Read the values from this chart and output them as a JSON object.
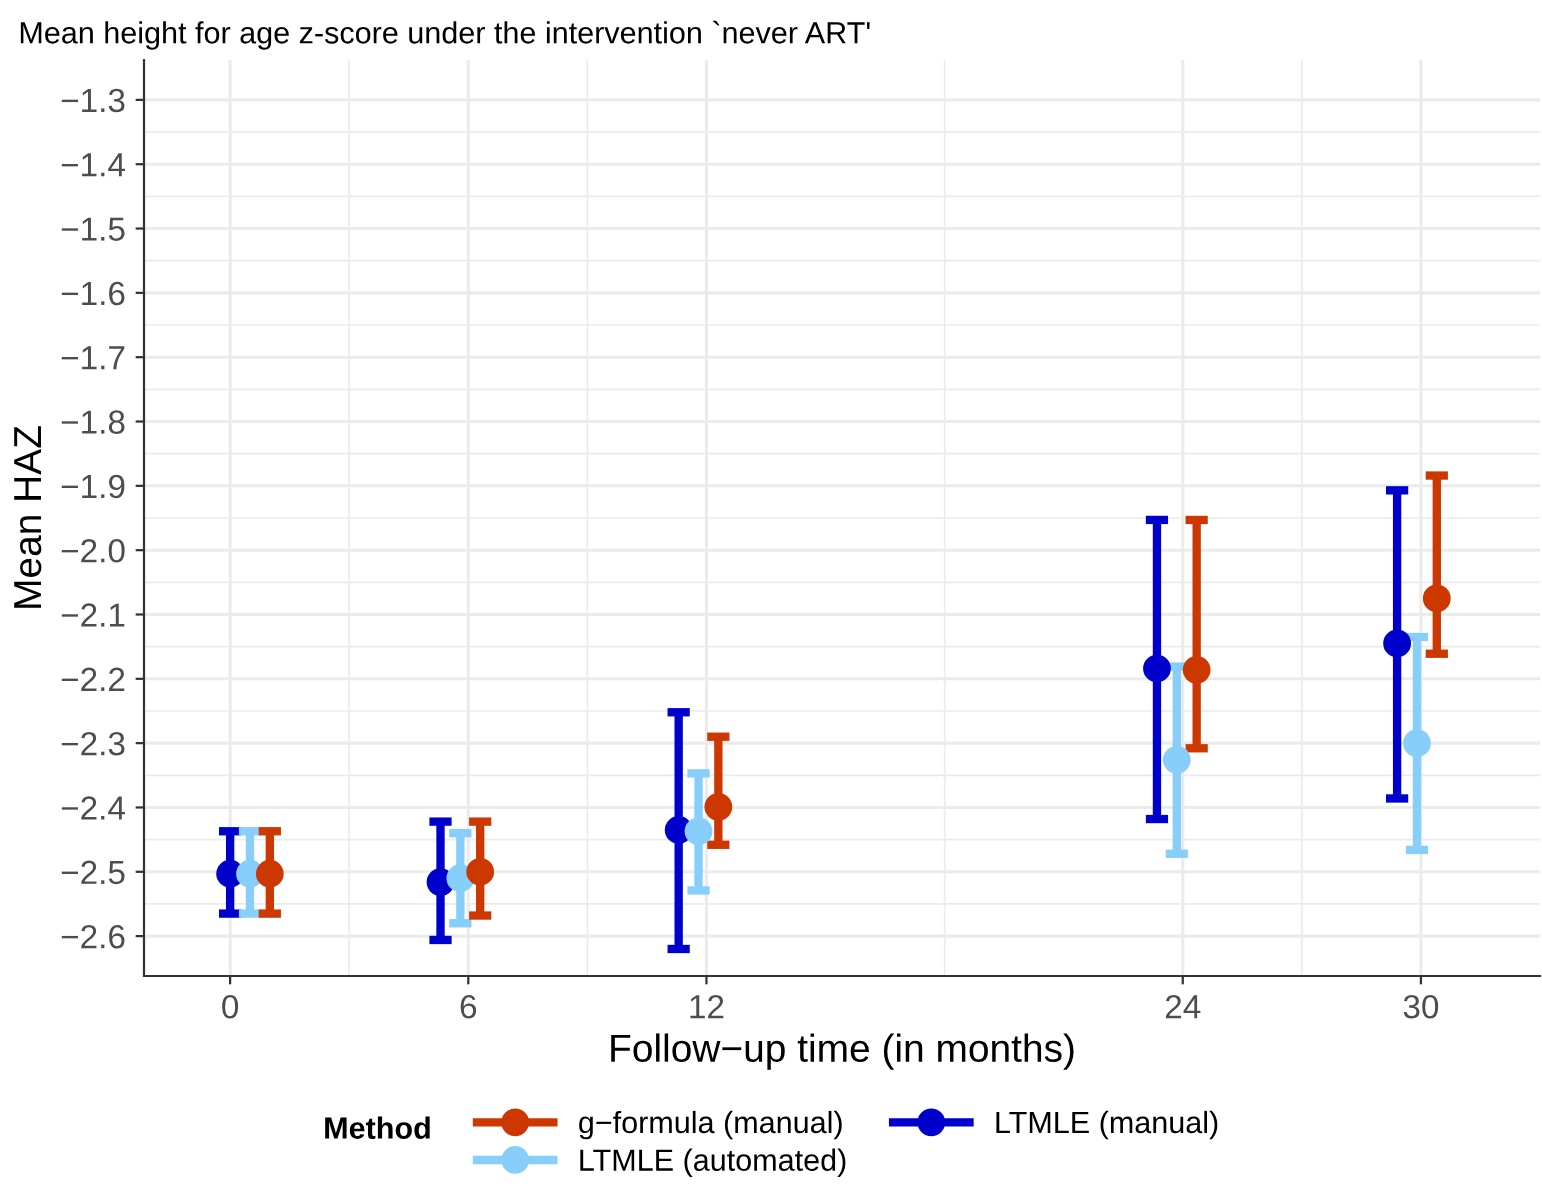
{
  "chart_data": {
    "type": "scatter",
    "title": "Mean height for age z-score under the intervention `never ART'",
    "xlabel": "Follow−up time (in months)",
    "ylabel": "Mean HAZ",
    "legend_title": "Method",
    "series": [
      {
        "name": "g−formula (manual)",
        "color": "#cd3700",
        "x": [
          1,
          6.3,
          12.3,
          24.35,
          30.4
        ],
        "values": [
          -2.503,
          -2.5,
          -2.399,
          -2.186,
          -2.075
        ],
        "errors": [
          [
            -2.565,
            -2.437
          ],
          [
            -2.568,
            -2.422
          ],
          [
            -2.458,
            -2.29
          ],
          [
            -2.308,
            -1.953
          ],
          [
            -2.161,
            -1.884
          ]
        ]
      },
      {
        "name": "LTMLE (automated)",
        "color": "#87cefa",
        "x": [
          0.5,
          5.8,
          11.8,
          23.85,
          29.9
        ],
        "values": [
          -2.503,
          -2.51,
          -2.437,
          -2.326,
          -2.3
        ],
        "errors": [
          [
            -2.565,
            -2.437
          ],
          [
            -2.58,
            -2.44
          ],
          [
            -2.529,
            -2.347
          ],
          [
            -2.472,
            -2.181
          ],
          [
            -2.466,
            -2.135
          ]
        ]
      },
      {
        "name": "LTMLE (manual)",
        "color": "#0000cd",
        "x": [
          0,
          5.3,
          11.3,
          23.35,
          29.4
        ],
        "values": [
          -2.503,
          -2.516,
          -2.435,
          -2.184,
          -2.145
        ],
        "errors": [
          [
            -2.565,
            -2.437
          ],
          [
            -2.606,
            -2.422
          ],
          [
            -2.62,
            -2.252
          ],
          [
            -2.418,
            -1.953
          ],
          [
            -2.386,
            -1.907
          ]
        ]
      }
    ],
    "xlim": [
      -2.17,
      33.0
    ],
    "xticks": [
      0,
      6,
      12,
      24,
      30
    ],
    "ylim": [
      -2.662,
      -1.238
    ],
    "yticks": [
      {
        "value": -2.6,
        "label": "−2.6"
      },
      {
        "value": -2.5,
        "label": "−2.5"
      },
      {
        "value": -2.4,
        "label": "−2.4"
      },
      {
        "value": -2.3,
        "label": "−2.3"
      },
      {
        "value": -2.2,
        "label": "−2.2"
      },
      {
        "value": -2.1,
        "label": "−2.1"
      },
      {
        "value": -2.0,
        "label": "−2.0"
      },
      {
        "value": -1.9,
        "label": "−1.9"
      },
      {
        "value": -1.8,
        "label": "−1.8"
      },
      {
        "value": -1.7,
        "label": "−1.7"
      },
      {
        "value": -1.6,
        "label": "−1.6"
      },
      {
        "value": -1.5,
        "label": "−1.5"
      },
      {
        "value": -1.4,
        "label": "−1.4"
      },
      {
        "value": -1.3,
        "label": "−1.3"
      }
    ],
    "grid": true,
    "legend": "bottom",
    "marker": "circle",
    "line_style": "solid"
  }
}
